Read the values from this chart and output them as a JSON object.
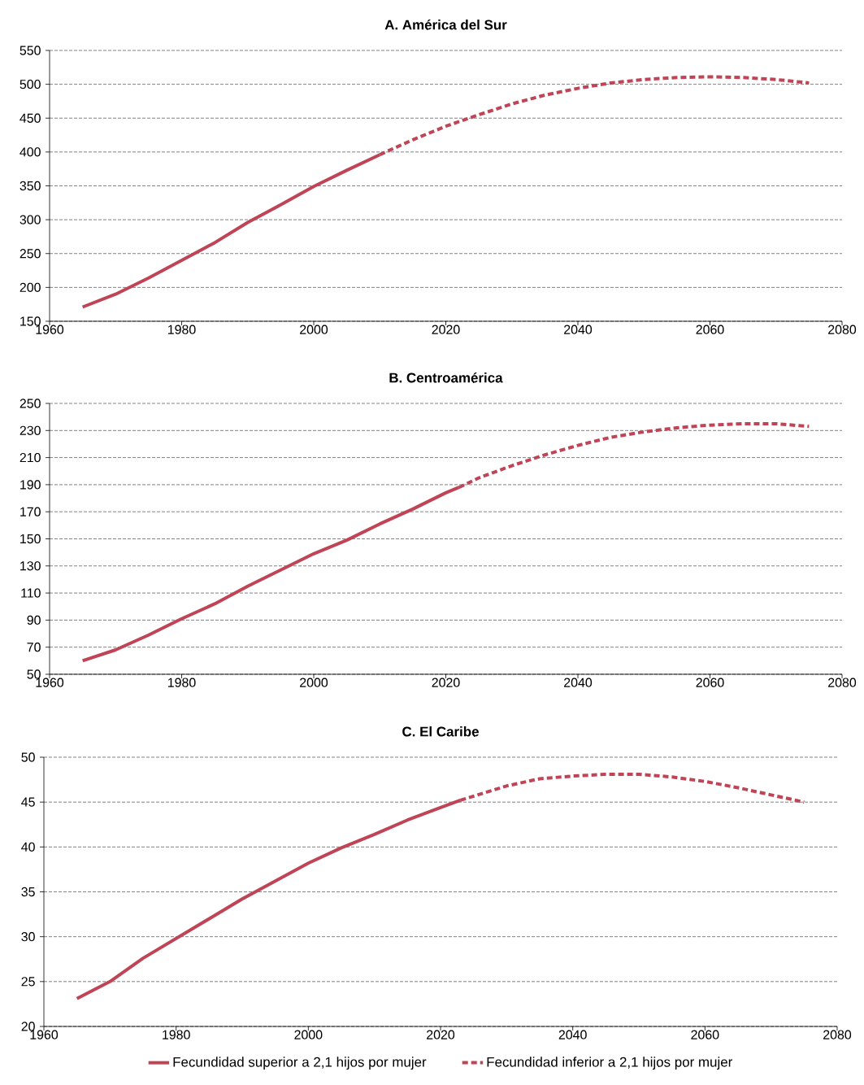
{
  "chart_data": [
    {
      "type": "line",
      "title": "**A. América del Sur**",
      "xlim": [
        1960,
        2080
      ],
      "xticks": [
        1960,
        1980,
        2000,
        2020,
        2040,
        2060,
        2080
      ],
      "ylim": [
        150,
        550
      ],
      "yticks": [
        150,
        200,
        250,
        300,
        350,
        400,
        450,
        500,
        550
      ],
      "grid": "y",
      "legend": false,
      "series": [
        {
          "color": "#be4456",
          "line_style": "solid",
          "x": [
            1965,
            1970,
            1975,
            1980,
            1985,
            1990,
            1995,
            2000,
            2005,
            2010
          ],
          "values": [
            171,
            190,
            214,
            240,
            266,
            296,
            322,
            349,
            373,
            396
          ]
        },
        {
          "color": "#be4456",
          "line_style": "dashed",
          "x": [
            2010,
            2015,
            2020,
            2025,
            2030,
            2035,
            2040,
            2045,
            2050,
            2055,
            2060,
            2065,
            2070,
            2075
          ],
          "values": [
            396,
            418,
            438,
            455,
            471,
            484,
            494,
            502,
            507,
            510,
            511,
            510,
            507,
            502
          ]
        }
      ]
    },
    {
      "type": "line",
      "title": "**B. Centroamérica**",
      "xlim": [
        1960,
        2080
      ],
      "xticks": [
        1960,
        1980,
        2000,
        2020,
        2040,
        2060,
        2080
      ],
      "ylim": [
        50,
        250
      ],
      "yticks": [
        50,
        70,
        90,
        110,
        130,
        150,
        170,
        190,
        210,
        230,
        250
      ],
      "grid": "y",
      "legend": false,
      "series": [
        {
          "color": "#be4456",
          "line_style": "solid",
          "x": [
            1965,
            1970,
            1975,
            1980,
            1985,
            1990,
            1995,
            2000,
            2005,
            2010,
            2015,
            2020,
            2022
          ],
          "values": [
            60,
            68,
            79,
            91,
            102,
            115,
            127,
            139,
            149,
            161,
            172,
            184,
            188
          ]
        },
        {
          "color": "#be4456",
          "line_style": "dashed",
          "x": [
            2022,
            2025,
            2030,
            2035,
            2040,
            2045,
            2050,
            2055,
            2060,
            2065,
            2070,
            2075
          ],
          "values": [
            188,
            195,
            204,
            212,
            219,
            225,
            229,
            232,
            234,
            235,
            235,
            233
          ]
        }
      ]
    },
    {
      "type": "line",
      "title": "**C. El Caribe**",
      "xlim": [
        1960,
        2080
      ],
      "xticks": [
        1960,
        1980,
        2000,
        2020,
        2040,
        2060,
        2080
      ],
      "ylim": [
        20,
        50
      ],
      "yticks": [
        20,
        25,
        30,
        35,
        40,
        45,
        50
      ],
      "grid": "y",
      "legend": "bottom",
      "series": [
        {
          "name": "Fecundidad superior a 2,1 hijos por mujer",
          "color": "#be4456",
          "line_style": "solid",
          "x": [
            1965,
            1970,
            1975,
            1980,
            1985,
            1990,
            1995,
            2000,
            2005,
            2010,
            2015,
            2020,
            2023
          ],
          "values": [
            23.1,
            25.0,
            27.6,
            29.8,
            32.0,
            34.2,
            36.2,
            38.2,
            39.9,
            41.4,
            43.0,
            44.4,
            45.2
          ]
        },
        {
          "name": "Fecundidad inferior a 2,1 hijos por mujer",
          "color": "#be4456",
          "line_style": "dashed",
          "x": [
            2023,
            2030,
            2035,
            2040,
            2045,
            2050,
            2055,
            2060,
            2065,
            2070,
            2075
          ],
          "values": [
            45.2,
            46.8,
            47.6,
            47.9,
            48.1,
            48.1,
            47.8,
            47.3,
            46.6,
            45.8,
            45.0
          ]
        }
      ]
    }
  ]
}
